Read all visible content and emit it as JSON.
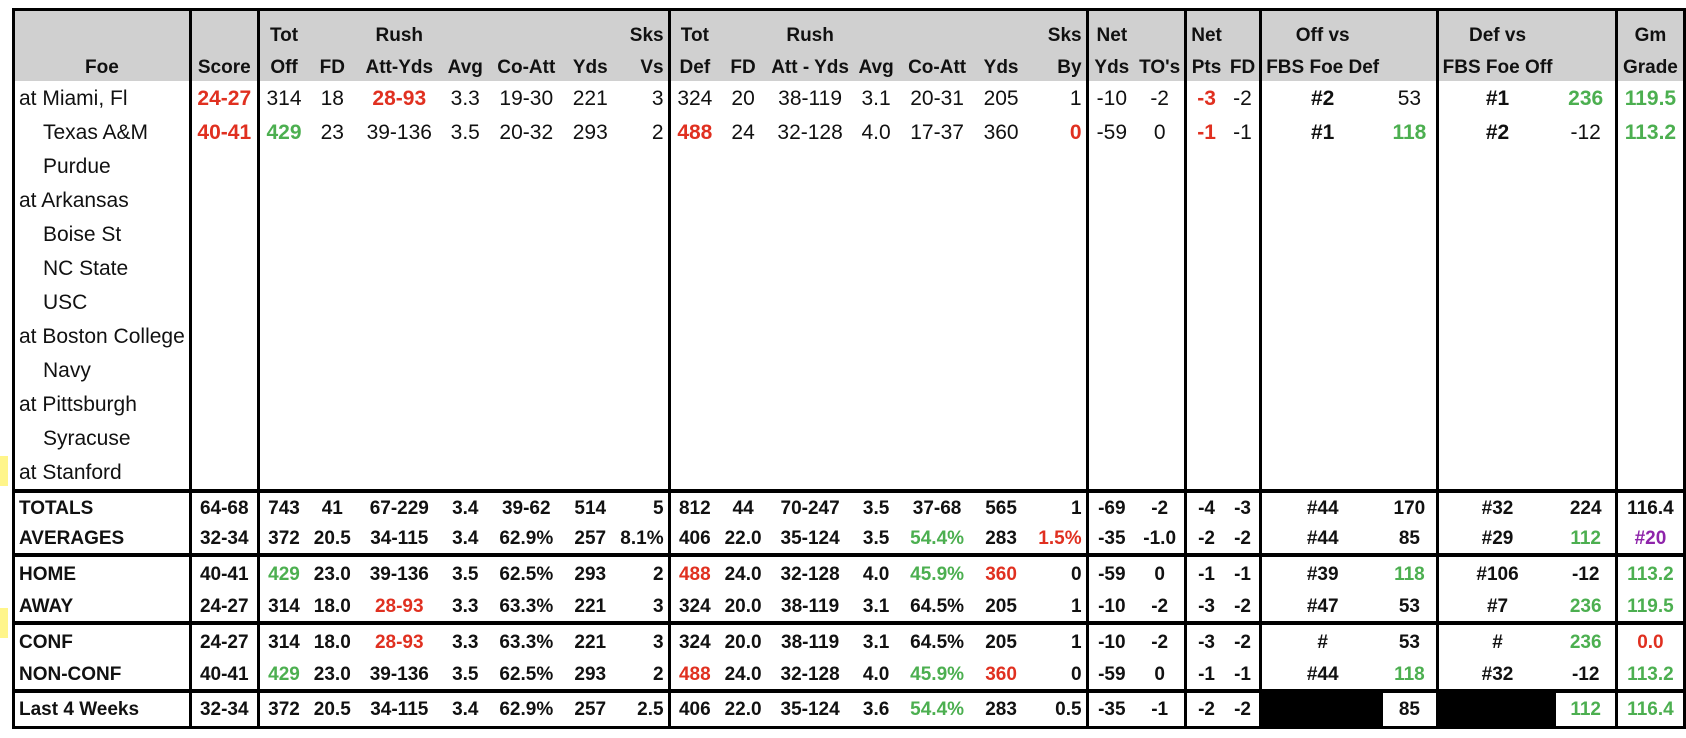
{
  "header_top": [
    "",
    "",
    "Tot",
    "",
    "Rush",
    "",
    "",
    "",
    "Sks",
    "Tot",
    "",
    "Rush",
    "",
    "",
    "",
    "Sks",
    "Net",
    "",
    "Net",
    "",
    "Off vs",
    "",
    "Def vs",
    "",
    "Gm"
  ],
  "header_bottom": [
    "Foe",
    "Score",
    "Off",
    "FD",
    "Att-Yds",
    "Avg",
    "Co-Att",
    "Yds",
    "Vs",
    "Def",
    "FD",
    "Att - Yds",
    "Avg",
    "Co-Att",
    "Yds",
    "By",
    "Yds",
    "TO's",
    "Pts",
    "FD",
    "FBS Foe Def",
    "",
    "FBS Foe Off",
    "",
    "Grade"
  ],
  "games": [
    {
      "foe": "at Miami, Fl",
      "indent": false,
      "cells": [
        "24-27",
        "314",
        "18",
        "28-93",
        "3.3",
        "19-30",
        "221",
        "3",
        "324",
        "20",
        "38-119",
        "3.1",
        "20-31",
        "205",
        "1",
        "-10",
        "-2",
        "-3",
        "-2",
        "#2",
        "53",
        "#1",
        "236",
        "119.5"
      ]
    },
    {
      "foe": "Texas A&M",
      "indent": true,
      "cells": [
        "40-41",
        "429",
        "23",
        "39-136",
        "3.5",
        "20-32",
        "293",
        "2",
        "488",
        "24",
        "32-128",
        "4.0",
        "17-37",
        "360",
        "0",
        "-59",
        "0",
        "-1",
        "-1",
        "#1",
        "118",
        "#2",
        "-12",
        "113.2"
      ]
    },
    {
      "foe": "Purdue",
      "indent": true,
      "cells": []
    },
    {
      "foe": "at Arkansas",
      "indent": false,
      "cells": []
    },
    {
      "foe": "Boise St",
      "indent": true,
      "cells": []
    },
    {
      "foe": "NC State",
      "indent": true,
      "cells": []
    },
    {
      "foe": "USC",
      "indent": true,
      "cells": []
    },
    {
      "foe": "at Boston College",
      "indent": false,
      "cells": []
    },
    {
      "foe": "Navy",
      "indent": true,
      "cells": []
    },
    {
      "foe": "at Pittsburgh",
      "indent": false,
      "cells": []
    },
    {
      "foe": "Syracuse",
      "indent": true,
      "cells": []
    },
    {
      "foe": "at Stanford",
      "indent": false,
      "cells": []
    }
  ],
  "summary": [
    {
      "label": "TOTALS",
      "cells": [
        "64-68",
        "743",
        "41",
        "67-229",
        "3.4",
        "39-62",
        "514",
        "5",
        "812",
        "44",
        "70-247",
        "3.5",
        "37-68",
        "565",
        "1",
        "-69",
        "-2",
        "-4",
        "-3",
        "#44",
        "170",
        "#32",
        "224",
        "116.4"
      ]
    },
    {
      "label": "AVERAGES",
      "cells": [
        "32-34",
        "372",
        "20.5",
        "34-115",
        "3.4",
        "62.9%",
        "257",
        "8.1%",
        "406",
        "22.0",
        "35-124",
        "3.5",
        "54.4%",
        "283",
        "1.5%",
        "-35",
        "-1.0",
        "-2",
        "-2",
        "#44",
        "85",
        "#29",
        "112",
        "#20"
      ]
    },
    {
      "label": "HOME",
      "cells": [
        "40-41",
        "429",
        "23.0",
        "39-136",
        "3.5",
        "62.5%",
        "293",
        "2",
        "488",
        "24.0",
        "32-128",
        "4.0",
        "45.9%",
        "360",
        "0",
        "-59",
        "0",
        "-1",
        "-1",
        "#39",
        "118",
        "#106",
        "-12",
        "113.2"
      ]
    },
    {
      "label": "AWAY",
      "cells": [
        "24-27",
        "314",
        "18.0",
        "28-93",
        "3.3",
        "63.3%",
        "221",
        "3",
        "324",
        "20.0",
        "38-119",
        "3.1",
        "64.5%",
        "205",
        "1",
        "-10",
        "-2",
        "-3",
        "-2",
        "#47",
        "53",
        "#7",
        "236",
        "119.5"
      ]
    },
    {
      "label": "CONF",
      "cells": [
        "24-27",
        "314",
        "18.0",
        "28-93",
        "3.3",
        "63.3%",
        "221",
        "3",
        "324",
        "20.0",
        "38-119",
        "3.1",
        "64.5%",
        "205",
        "1",
        "-10",
        "-2",
        "-3",
        "-2",
        "#",
        "53",
        "#",
        "236",
        "0.0"
      ]
    },
    {
      "label": "NON-CONF",
      "cells": [
        "40-41",
        "429",
        "23.0",
        "39-136",
        "3.5",
        "62.5%",
        "293",
        "2",
        "488",
        "24.0",
        "32-128",
        "4.0",
        "45.9%",
        "360",
        "0",
        "-59",
        "0",
        "-1",
        "-1",
        "#44",
        "118",
        "#32",
        "-12",
        "113.2"
      ]
    },
    {
      "label": "Last 4 Weeks",
      "cells": [
        "32-34",
        "372",
        "20.5",
        "34-115",
        "3.4",
        "62.9%",
        "257",
        "2.5",
        "406",
        "22.0",
        "35-124",
        "3.6",
        "54.4%",
        "283",
        "0.5",
        "-35",
        "-1",
        "-2",
        "-2",
        "",
        "85",
        "",
        "112",
        "116.4"
      ]
    }
  ],
  "colors": {
    "red": "#e03020",
    "green": "#4caf50",
    "purple": "#8e24aa",
    "header_bg": "#d0d0d0"
  }
}
